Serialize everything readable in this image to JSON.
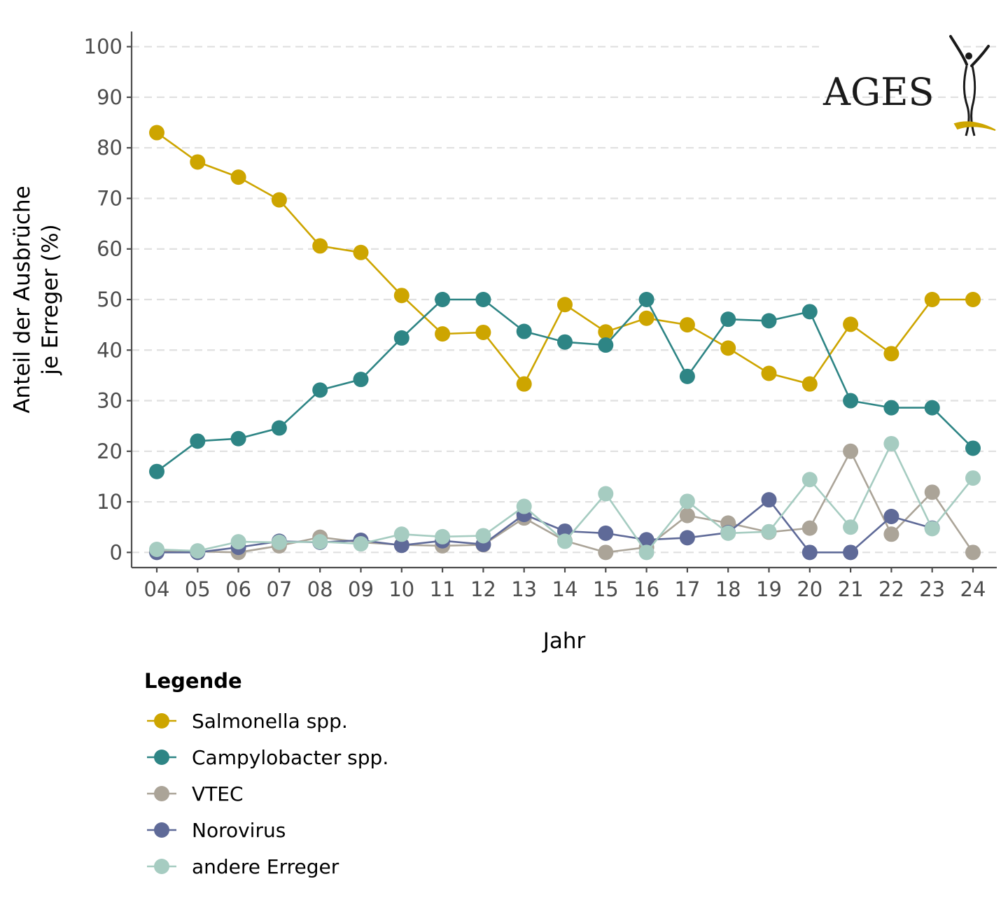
{
  "chart_data": {
    "type": "line",
    "title": "",
    "xlabel": "Jahr",
    "ylabel_lines": [
      "Anteil der Ausbrüche",
      "je Erreger (%)"
    ],
    "categories": [
      "04",
      "05",
      "06",
      "07",
      "08",
      "09",
      "10",
      "11",
      "12",
      "13",
      "14",
      "15",
      "16",
      "17",
      "18",
      "19",
      "20",
      "21",
      "22",
      "23",
      "24"
    ],
    "yticks": [
      0,
      10,
      20,
      30,
      40,
      50,
      60,
      70,
      80,
      90,
      100
    ],
    "ylim": [
      -3,
      103
    ],
    "grid": "horizontal-dashed",
    "legend_title": "Legende",
    "legend_position": "bottom-left",
    "series": [
      {
        "name": "Salmonella spp.",
        "color": "#CDA500",
        "values": [
          83,
          77.2,
          74.2,
          69.7,
          60.6,
          59.3,
          50.8,
          43.2,
          43.5,
          33.3,
          49,
          43.6,
          46.3,
          45,
          40.4,
          35.4,
          33.3,
          45.1,
          39.3,
          50,
          50
        ]
      },
      {
        "name": "Campylobacter spp.",
        "color": "#2E8585",
        "values": [
          16,
          22,
          22.5,
          24.6,
          32.1,
          34.2,
          42.4,
          50,
          50,
          43.7,
          41.6,
          41,
          50,
          34.8,
          46.1,
          45.8,
          47.6,
          30,
          28.6,
          28.6,
          20.6
        ]
      },
      {
        "name": "VTEC",
        "color": "#ABA498",
        "values": [
          0.3,
          0.2,
          0,
          1.3,
          3,
          2,
          1.5,
          1.3,
          1.5,
          6.8,
          2.3,
          0,
          1,
          7.3,
          5.8,
          4,
          4.8,
          20,
          3.6,
          11.9,
          0
        ]
      },
      {
        "name": "Norovirus",
        "color": "#5F6A98",
        "values": [
          0,
          0,
          1,
          2.2,
          2,
          2.4,
          1.4,
          2.3,
          1.6,
          7.5,
          4.2,
          3.8,
          2.5,
          2.9,
          3.9,
          10.4,
          0,
          0,
          7.1,
          4.8,
          null
        ]
      },
      {
        "name": "andere Erreger",
        "color": "#A6CCC1",
        "values": [
          0.6,
          0.3,
          2.1,
          2,
          2.1,
          1.7,
          3.6,
          3.1,
          3.3,
          9.1,
          2.2,
          11.6,
          0,
          10.1,
          3.8,
          4.1,
          14.4,
          5,
          21.5,
          4.7,
          14.7
        ]
      }
    ]
  },
  "logo": {
    "text": "AGES"
  }
}
